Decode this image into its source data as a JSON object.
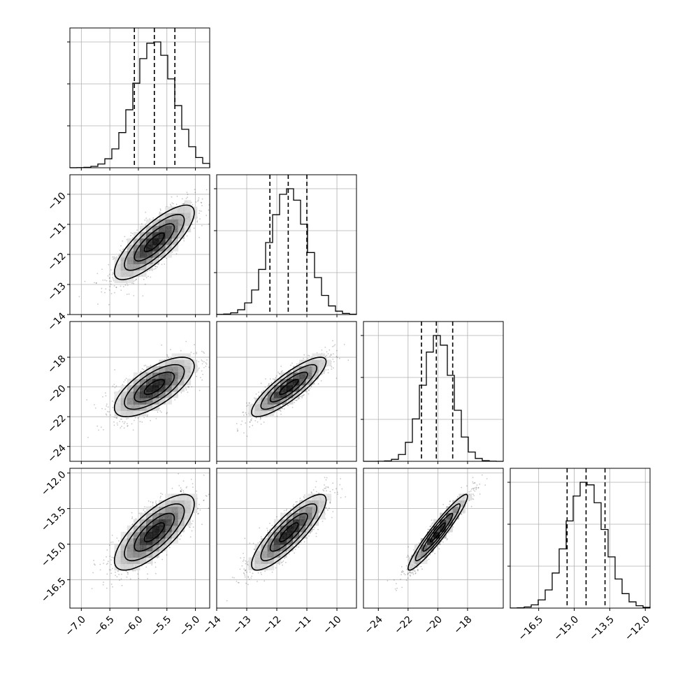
{
  "chart_data": {
    "type": "corner",
    "grid": true,
    "parameters": [
      {
        "range": [
          -7.2,
          -4.75
        ],
        "ticks": [
          -7.0,
          -6.5,
          -6.0,
          -5.5,
          -5.0
        ],
        "tick_labels": [
          "−7.0",
          "−6.5",
          "−6.0",
          "−5.5",
          "−5.0"
        ],
        "quantiles": [
          -6.07,
          -5.72,
          -5.36
        ],
        "mean": -5.72,
        "sd": 0.35
      },
      {
        "range": [
          -14,
          -9.35
        ],
        "ticks": [
          -14,
          -13,
          -12,
          -11,
          -10
        ],
        "tick_labels": [
          "−14",
          "−13",
          "−12",
          "−11",
          "−10"
        ],
        "quantiles": [
          -12.23,
          -11.62,
          -11.0
        ],
        "mean": -11.6,
        "sd": 0.62
      },
      {
        "range": [
          -25,
          -15.6
        ],
        "ticks": [
          -24,
          -22,
          -20,
          -18
        ],
        "tick_labels": [
          "−24",
          "−22",
          "−20",
          "−18"
        ],
        "quantiles": [
          -21.1,
          -20.1,
          -19.0
        ],
        "mean": -20.0,
        "sd": 1.0
      },
      {
        "range": [
          -17.7,
          -11.8
        ],
        "ticks": [
          -16.5,
          -15.0,
          -13.5,
          -12.0
        ],
        "tick_labels": [
          "−16.5",
          "−15.0",
          "−13.5",
          "−12.0"
        ],
        "quantiles": [
          -15.3,
          -14.5,
          -13.7
        ],
        "mean": -14.5,
        "sd": 0.8
      }
    ],
    "y_ranges": [
      null,
      [
        -14,
        -9.35
      ],
      [
        -25,
        -15.6
      ],
      [
        -17.7,
        -11.8
      ]
    ],
    "y_ticks": [
      [],
      {
        "values": [
          -14,
          -13,
          -12,
          -11,
          -10
        ],
        "labels": [
          "−14",
          "−13",
          "−12",
          "−11",
          "−10"
        ]
      },
      {
        "values": [
          -24,
          -22,
          -20,
          -18
        ],
        "labels": [
          "−24",
          "−22",
          "−20",
          "−18"
        ]
      },
      {
        "values": [
          -16.5,
          -15.0,
          -13.5,
          -12.0
        ],
        "labels": [
          "−16.5",
          "−15.0",
          "−13.5",
          "−12.0"
        ]
      }
    ],
    "correlations": {
      "1_0": 0.8,
      "2_0": 0.7,
      "2_1": 0.85,
      "3_0": 0.75,
      "3_1": 0.85,
      "3_2": 0.95
    },
    "hist_bins": 20,
    "colors": {
      "line": "#000000",
      "grid": "#b0b0b0",
      "points": "#808080"
    }
  }
}
